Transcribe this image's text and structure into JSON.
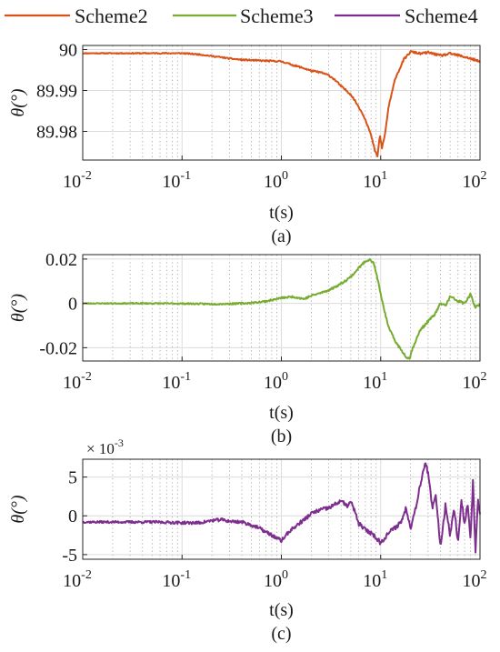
{
  "legend": {
    "placement": "top",
    "items": [
      {
        "label": "Scheme2",
        "color": "#d95319"
      },
      {
        "label": "Scheme3",
        "color": "#77ac30"
      },
      {
        "label": "Scheme4",
        "color": "#7e2f8e"
      }
    ]
  },
  "chart_data": [
    {
      "type": "line",
      "panel_label": "(a)",
      "xlabel": "t(s)",
      "ylabel": "θ(°)",
      "xscale": "log",
      "xlim": [
        0.01,
        100
      ],
      "ylim": [
        89.973,
        90.001
      ],
      "xticks": [
        {
          "b": "10",
          "e": "-2"
        },
        {
          "b": "10",
          "e": "-1"
        },
        {
          "b": "10",
          "e": "0"
        },
        {
          "b": "10",
          "e": "1"
        },
        {
          "b": "10",
          "e": "2"
        }
      ],
      "yticks": [
        {
          "v": 89.98,
          "label": "89.98"
        },
        {
          "v": 89.99,
          "label": "89.99"
        },
        {
          "v": 90,
          "label": "90"
        }
      ],
      "exponent_label": null,
      "grid": true,
      "series": [
        {
          "color": "#d95319",
          "noise": 0.00028,
          "seed": 11,
          "x": [
            0.01,
            0.05,
            0.1,
            0.15,
            0.2,
            0.3,
            0.4,
            0.6,
            0.8,
            1.0,
            1.1,
            1.3,
            1.6,
            1.8,
            2.0,
            2.5,
            3.0,
            3.5,
            4.0,
            5.0,
            6.0,
            7.0,
            8.0,
            8.8,
            9.3,
            9.8,
            10.3,
            11.0,
            12.0,
            14.0,
            17.0,
            20.0,
            25.0,
            30.0,
            40.0,
            50.0,
            70.0,
            100.0
          ],
          "y": [
            89.9991,
            89.9991,
            89.9991,
            89.9988,
            89.9984,
            89.9978,
            89.9975,
            89.9973,
            89.9972,
            89.9971,
            89.9968,
            89.9962,
            89.9956,
            89.9952,
            89.9948,
            89.9944,
            89.9937,
            89.9925,
            89.991,
            89.989,
            89.986,
            89.983,
            89.979,
            89.975,
            89.974,
            89.979,
            89.976,
            89.979,
            89.986,
            89.993,
            89.9975,
            89.9995,
            89.999,
            89.9993,
            89.9985,
            89.999,
            89.9982,
            89.997
          ]
        }
      ]
    },
    {
      "type": "line",
      "panel_label": "(b)",
      "xlabel": "t(s)",
      "ylabel": "θ(°)",
      "xscale": "log",
      "xlim": [
        0.01,
        100
      ],
      "ylim": [
        -0.026,
        0.022
      ],
      "xticks": [
        {
          "b": "10",
          "e": "-2"
        },
        {
          "b": "10",
          "e": "-1"
        },
        {
          "b": "10",
          "e": "0"
        },
        {
          "b": "10",
          "e": "1"
        },
        {
          "b": "10",
          "e": "2"
        }
      ],
      "yticks": [
        {
          "v": -0.02,
          "label": "-0.02"
        },
        {
          "v": 0,
          "label": "0"
        },
        {
          "v": 0.02,
          "label": "0.02"
        }
      ],
      "exponent_label": null,
      "grid": true,
      "series": [
        {
          "color": "#77ac30",
          "noise": 0.0006,
          "seed": 23,
          "x": [
            0.01,
            0.05,
            0.1,
            0.2,
            0.3,
            0.5,
            0.7,
            1.0,
            1.3,
            1.7,
            2.0,
            3.0,
            4.0,
            5.0,
            6.0,
            7.0,
            7.8,
            8.5,
            9.2,
            10.0,
            11.0,
            12.0,
            14.0,
            16.0,
            18.0,
            19.5,
            21.0,
            25.0,
            30.0,
            35.0,
            40.0,
            45.0,
            50.0,
            60.0,
            70.0,
            80.0,
            90.0,
            100.0
          ],
          "y": [
            0,
            0,
            -0.0001,
            -0.0003,
            -0.0002,
            0.0002,
            0.001,
            0.0025,
            0.003,
            0.002,
            0.0035,
            0.006,
            0.009,
            0.012,
            0.016,
            0.019,
            0.02,
            0.018,
            0.012,
            0.004,
            -0.004,
            -0.011,
            -0.017,
            -0.021,
            -0.024,
            -0.025,
            -0.02,
            -0.012,
            -0.008,
            -0.005,
            0.0,
            -0.001,
            0.003,
            0.001,
            0.0,
            0.004,
            -0.002,
            0.0
          ]
        }
      ]
    },
    {
      "type": "line",
      "panel_label": "(c)",
      "xlabel": "t(s)",
      "ylabel": "θ(°)",
      "xscale": "log",
      "xlim": [
        0.01,
        100
      ],
      "ylim": [
        -5.6,
        7.3
      ],
      "xticks": [
        {
          "b": "10",
          "e": "-2"
        },
        {
          "b": "10",
          "e": "-1"
        },
        {
          "b": "10",
          "e": "0"
        },
        {
          "b": "10",
          "e": "1"
        },
        {
          "b": "10",
          "e": "2"
        }
      ],
      "yticks": [
        {
          "v": -5,
          "label": "-5"
        },
        {
          "v": 0,
          "label": "0"
        },
        {
          "v": 5,
          "label": "5"
        }
      ],
      "exponent_label": {
        "base": "× 10",
        "exp": "-3"
      },
      "grid": true,
      "series": [
        {
          "color": "#7e2f8e",
          "noise": 0.35,
          "seed": 37,
          "x": [
            0.01,
            0.05,
            0.1,
            0.15,
            0.2,
            0.25,
            0.3,
            0.4,
            0.5,
            0.6,
            0.7,
            0.8,
            0.9,
            1.0,
            1.2,
            1.5,
            2.0,
            2.5,
            3.0,
            3.5,
            4.0,
            4.5,
            5.0,
            5.5,
            6.0,
            7.0,
            8.0,
            9.0,
            10.0,
            11.0,
            12.0,
            14.0,
            16.0,
            18.0,
            20.0,
            22.0,
            25.0,
            28.0,
            30.0,
            33.0,
            36.0,
            40.0,
            45.0,
            50.0,
            55.0,
            60.0,
            65.0,
            70.0,
            75.0,
            80.0,
            85.0,
            90.0,
            95.0,
            100.0
          ],
          "y": [
            -0.8,
            -0.8,
            -0.9,
            -0.9,
            -0.6,
            -0.5,
            -0.7,
            -0.8,
            -1.2,
            -1.6,
            -2.1,
            -2.5,
            -2.9,
            -3.2,
            -2.0,
            -1.0,
            0.3,
            0.8,
            1.0,
            1.5,
            2.0,
            1.2,
            1.8,
            0.5,
            -1.0,
            -1.8,
            -2.2,
            -2.8,
            -3.5,
            -2.8,
            -2.2,
            -1.5,
            -0.8,
            1.0,
            -1.5,
            0.5,
            4.0,
            7.0,
            5.5,
            1.0,
            2.5,
            -4.0,
            1.5,
            -2.5,
            1.0,
            -3.5,
            2.0,
            -1.0,
            1.5,
            -3.0,
            4.5,
            -5.0,
            2.0,
            0.0
          ]
        }
      ]
    }
  ]
}
